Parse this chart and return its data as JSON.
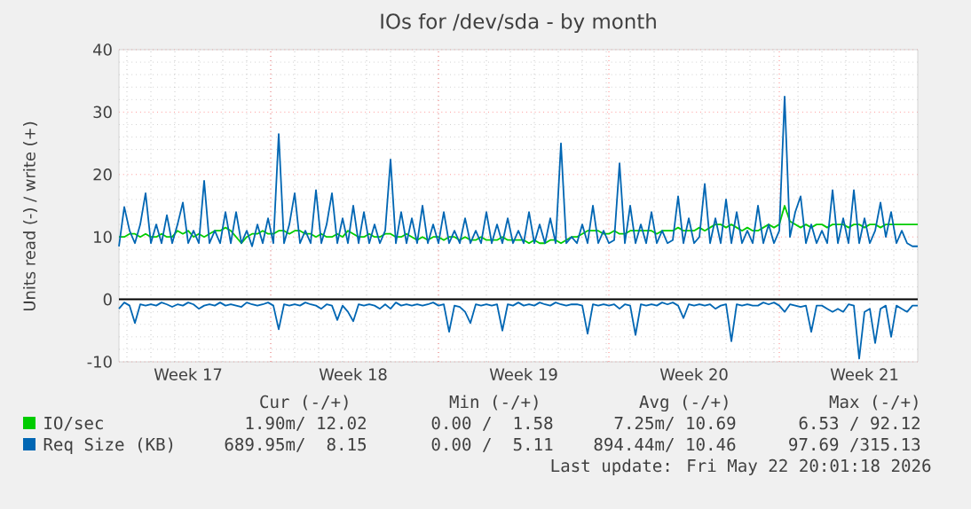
{
  "chart_data": {
    "type": "line",
    "title": "IOs for /dev/sda - by month",
    "ylabel": "Units read (-) / write (+)",
    "categories": [
      null,
      null,
      null,
      null,
      null,
      null,
      null,
      null,
      null,
      null,
      null,
      null,
      null,
      "Week 17",
      null,
      null,
      null,
      null,
      null,
      null,
      null,
      null,
      null,
      null,
      null,
      null,
      null,
      null,
      null,
      null,
      null,
      null,
      null,
      null,
      null,
      null,
      null,
      null,
      null,
      null,
      null,
      null,
      null,
      null,
      "Week 18",
      null,
      null,
      null,
      null,
      null,
      null,
      null,
      null,
      null,
      null,
      null,
      null,
      null,
      null,
      null,
      null,
      null,
      null,
      null,
      null,
      null,
      null,
      null,
      null,
      null,
      null,
      null,
      null,
      null,
      null,
      null,
      "Week 19",
      null,
      null,
      null,
      null,
      null,
      null,
      null,
      null,
      null,
      null,
      null,
      null,
      null,
      null,
      null,
      null,
      null,
      null,
      null,
      null,
      null,
      null,
      null,
      null,
      null,
      null,
      null,
      null,
      null,
      null,
      null,
      "Week 20",
      null,
      null,
      null,
      null,
      null,
      null,
      null,
      null,
      null,
      null,
      null,
      null,
      null,
      null,
      null,
      null,
      null,
      null,
      null,
      null,
      null,
      null,
      null,
      null,
      null,
      null,
      null,
      null,
      null,
      null,
      null,
      "Week 21",
      null,
      null,
      null,
      null,
      null,
      null,
      null,
      null,
      null,
      null
    ],
    "ylim": [
      -10,
      40
    ],
    "yticks": [
      -10,
      0,
      10,
      20,
      30,
      40
    ],
    "grid": true,
    "legend": "bottom",
    "marker": "none",
    "line_style": "solid",
    "ref_lines": [
      {
        "axis": "y",
        "value": 0,
        "color": "#000000"
      }
    ],
    "series": [
      {
        "name": "IO/sec",
        "color": "#00cc00",
        "values": [
          10,
          10,
          10.5,
          10.5,
          10,
          10.5,
          10,
          10,
          10.5,
          10,
          10,
          11,
          10.5,
          11,
          10,
          10.5,
          10,
          10.5,
          11,
          11,
          11.5,
          11,
          10,
          9,
          10,
          10.5,
          10.5,
          11,
          10.5,
          10.5,
          11,
          11,
          10.5,
          11,
          11,
          10.5,
          10.5,
          10,
          10.5,
          10,
          10,
          10.5,
          10,
          11,
          10.5,
          10,
          10,
          10.5,
          10,
          10,
          10.5,
          10.5,
          10,
          10,
          10.5,
          10,
          9.5,
          10,
          9.5,
          10,
          10,
          9.5,
          10,
          10,
          9.5,
          10,
          9.5,
          9.5,
          10,
          9.5,
          9.5,
          9.5,
          10,
          9.5,
          9.5,
          9.5,
          9.5,
          9,
          9.5,
          9,
          9,
          9.5,
          9.5,
          9,
          9.5,
          10,
          10,
          10.5,
          11,
          11,
          11,
          10.5,
          10.5,
          11,
          10.5,
          10.5,
          11,
          11,
          11,
          11,
          11,
          10.5,
          11,
          11,
          11,
          11.5,
          11,
          11,
          11,
          11.5,
          11,
          11.5,
          12,
          12,
          11.5,
          12,
          11.5,
          11,
          11.5,
          11,
          11,
          11.5,
          12,
          11.5,
          12,
          15,
          12.5,
          12,
          11.5,
          12,
          11.5,
          12,
          12,
          11.5,
          12,
          12,
          12,
          11.5,
          12,
          12,
          11.5,
          12,
          12,
          11.5,
          12,
          12,
          12,
          12,
          12,
          12,
          12
        ]
      },
      {
        "name": "Req Size (KB)",
        "color": "#0066b3",
        "values": [
          8.5,
          14.8,
          11,
          9,
          12,
          17,
          9,
          12,
          9,
          13.5,
          9,
          12,
          15.5,
          9,
          11,
          9,
          19,
          9,
          11,
          9,
          14,
          9,
          14,
          9,
          11,
          8.5,
          12,
          9,
          13,
          9,
          26.5,
          9,
          12,
          17,
          9,
          11,
          9,
          17.5,
          9,
          12,
          17,
          9,
          13,
          9,
          15,
          9,
          14,
          9,
          12,
          9,
          11,
          22.4,
          9,
          14,
          9,
          13,
          9,
          15,
          9,
          12,
          9,
          14,
          9,
          11,
          9,
          13,
          9,
          11,
          9,
          14,
          9,
          12,
          9,
          13,
          9,
          11,
          9,
          14,
          9,
          12,
          9,
          13,
          9,
          25,
          9,
          10,
          9,
          12,
          9,
          15,
          9,
          11,
          9,
          9.5,
          21.8,
          9,
          15,
          9,
          12,
          9,
          14,
          9,
          11,
          9,
          9.5,
          16.5,
          9,
          13,
          9,
          10,
          18.5,
          9,
          13,
          9,
          16,
          9,
          14,
          9,
          11,
          9,
          15,
          9,
          12,
          9,
          11,
          32.5,
          10,
          14,
          16.5,
          9,
          12,
          9,
          11,
          9,
          17.5,
          9,
          13,
          9,
          17.5,
          9,
          13,
          9,
          11,
          15.5,
          10,
          14,
          9,
          11,
          9,
          8.5,
          8.5
        ]
      },
      {
        "color": "#0066b3",
        "values": [
          -1.5,
          -0.5,
          -1,
          -3.8,
          -0.8,
          -1,
          -0.8,
          -1,
          -0.5,
          -0.8,
          -1.2,
          -0.8,
          -1,
          -0.5,
          -0.8,
          -1.5,
          -1,
          -0.8,
          -1,
          -0.5,
          -1,
          -0.8,
          -1,
          -1.2,
          -0.5,
          -0.8,
          -1,
          -0.8,
          -0.5,
          -1,
          -4.8,
          -0.8,
          -1,
          -0.8,
          -1,
          -0.5,
          -0.8,
          -1,
          -1.5,
          -0.8,
          -1,
          -3.3,
          -1,
          -2,
          -3.5,
          -0.8,
          -1,
          -0.8,
          -1,
          -1.5,
          -0.8,
          -1.5,
          -0.5,
          -1,
          -0.8,
          -1,
          -0.8,
          -1,
          -0.8,
          -0.5,
          -1,
          -0.8,
          -5.2,
          -1,
          -1.2,
          -2,
          -3.8,
          -0.8,
          -1,
          -0.8,
          -1,
          -0.8,
          -5,
          -0.8,
          -1,
          -0.5,
          -1,
          -0.8,
          -1,
          -0.5,
          -0.8,
          -1,
          -0.5,
          -0.8,
          -1,
          -0.8,
          -0.8,
          -1,
          -5.5,
          -0.8,
          -1,
          -0.8,
          -1,
          -0.8,
          -1.5,
          -0.8,
          -1,
          -5.7,
          -0.8,
          -1,
          -0.8,
          -1,
          -0.5,
          -0.8,
          -0.5,
          -1,
          -3,
          -0.8,
          -1,
          -0.8,
          -1,
          -0.8,
          -1.5,
          -1,
          -0.8,
          -6.7,
          -0.8,
          -1,
          -0.8,
          -1,
          -1,
          -0.5,
          -0.8,
          -0.5,
          -1,
          -2,
          -0.8,
          -1,
          -1.2,
          -1,
          -5.2,
          -1,
          -1,
          -1.5,
          -2,
          -1.5,
          -2,
          -0.8,
          -1,
          -9.5,
          -2,
          -1.5,
          -7,
          -1.5,
          -1,
          -6,
          -1,
          -1.5,
          -2,
          -1,
          -1
        ]
      }
    ],
    "annotations": [
      "Cur (-/+)",
      "Min (-/+)",
      "Avg (-/+)",
      "Max (-/+)",
      "1.90m/ 12.02",
      "0.00 /  1.58",
      "7.25m/ 10.69",
      "6.53 / 92.12",
      "689.95m/  8.15",
      "0.00 /  5.11",
      "894.44m/ 10.46",
      "97.69 /315.13",
      "Last update: Fri May 22 20:01:18 2026"
    ]
  }
}
